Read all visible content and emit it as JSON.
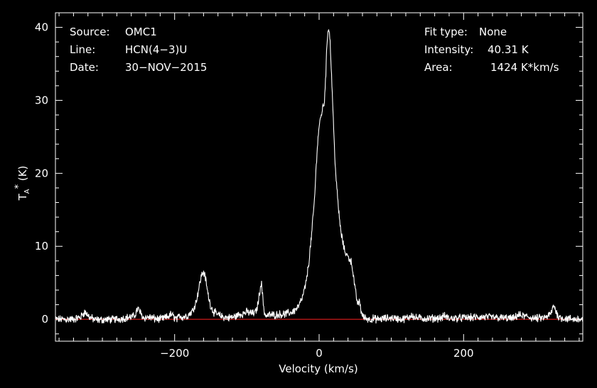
{
  "info": {
    "source_label": "Source:",
    "source_value": "OMC1",
    "line_label": "Line:",
    "line_value": "HCN(4−3)U",
    "date_label": "Date:",
    "date_value": "30−NOV−2015",
    "fit_label": "Fit type:",
    "fit_value": "None",
    "intensity_label": "Intensity:",
    "intensity_value": "40.31 K",
    "area_label": "Area:",
    "area_value": "1424 K*km/s"
  },
  "colors": {
    "background": "#000000",
    "axes": "#ffffff",
    "spectrum": "#ffffff",
    "baseline": "#ff2020"
  },
  "chart_data": {
    "type": "line",
    "xlabel": "Velocity (km/s)",
    "ylabel": "T_A* (K)",
    "xlim": [
      -365,
      365
    ],
    "ylim": [
      -3,
      42
    ],
    "xticks": [
      -200,
      0,
      200
    ],
    "yticks": [
      0,
      10,
      20,
      30,
      40
    ],
    "xtick_labels": [
      "−200",
      "0",
      "200"
    ],
    "ytick_labels": [
      "0",
      "10",
      "20",
      "30",
      "40"
    ],
    "grid": false,
    "baseline_y": 0,
    "series": [
      {
        "x": [
          -365,
          -340,
          -330,
          -325,
          -322,
          -318,
          -310,
          -280,
          -256,
          -251,
          -247,
          -243,
          -235,
          -228,
          -220,
          -210,
          -205,
          -200,
          -196,
          -193,
          -190,
          -182,
          -175,
          -170,
          -166,
          -163,
          -160,
          -157,
          -154,
          -150,
          -146,
          -140,
          -132,
          -125,
          -118,
          -112,
          -106,
          -100,
          -95,
          -91,
          -88,
          -86,
          -84,
          -82,
          -80,
          -78,
          -76,
          -73,
          -70,
          -62,
          -55,
          -48,
          -40,
          -34,
          -28,
          -23,
          -18,
          -14,
          -10,
          -6,
          -3,
          0,
          3,
          5,
          7,
          9,
          11,
          13,
          15,
          17,
          19,
          21,
          23,
          26,
          30,
          35,
          40,
          42,
          44,
          46,
          48,
          50,
          52,
          54,
          56,
          58,
          60,
          63,
          66,
          70,
          75,
          80,
          90,
          100,
          115,
          125,
          128,
          132,
          150,
          170,
          173,
          180,
          200,
          230,
          250,
          270,
          275,
          300,
          312,
          318,
          322,
          325,
          328,
          332,
          340,
          355,
          365
        ],
        "y": [
          0.0,
          0.0,
          0.3,
          1.0,
          0.8,
          0.3,
          -0.1,
          0.0,
          0.4,
          1.5,
          0.8,
          0.2,
          0.3,
          0.1,
          0.0,
          0.3,
          0.7,
          0.2,
          0.0,
          0.6,
          0.3,
          0.5,
          1.2,
          2.5,
          4.5,
          6.0,
          6.5,
          5.5,
          3.5,
          1.8,
          1.0,
          0.6,
          0.3,
          0.2,
          0.3,
          0.6,
          0.8,
          1.0,
          0.9,
          0.8,
          1.0,
          1.5,
          2.5,
          4.0,
          5.1,
          3.0,
          1.0,
          0.4,
          0.6,
          0.6,
          0.7,
          0.7,
          0.9,
          1.2,
          1.8,
          3.0,
          5.0,
          8.0,
          12.0,
          17.0,
          23.0,
          26.5,
          28.0,
          29.0,
          29.5,
          33.0,
          38.0,
          40.3,
          38.5,
          34.0,
          29.0,
          24.0,
          20.0,
          16.0,
          12.0,
          9.5,
          8.5,
          8.3,
          8.0,
          7.2,
          5.5,
          4.0,
          2.8,
          2.0,
          2.5,
          1.2,
          0.5,
          0.2,
          0.1,
          0.0,
          0.1,
          0.0,
          0.1,
          0.2,
          0.0,
          0.3,
          0.7,
          0.2,
          0.1,
          0.2,
          0.5,
          0.1,
          0.2,
          0.3,
          0.2,
          0.1,
          0.6,
          0.1,
          0.2,
          0.5,
          1.0,
          2.0,
          1.0,
          0.3,
          0.1,
          0.0,
          0.0
        ]
      }
    ]
  }
}
